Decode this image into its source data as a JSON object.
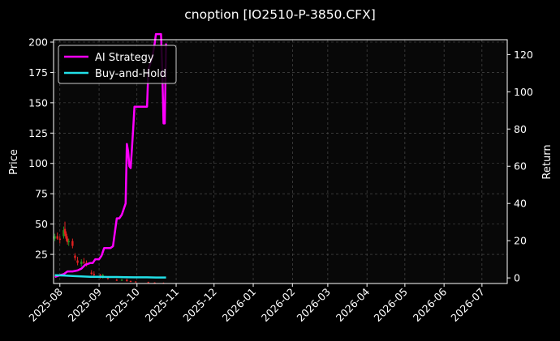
{
  "chart_data": {
    "type": "line",
    "title": "cnoption [IO2510-P-3850.CFX]",
    "xlabel": "",
    "ylabel": "Price",
    "y2label": "Return",
    "grid": true,
    "legend_placement": "top-left",
    "background": "#000000",
    "x_ticks": [
      "2025-08",
      "2025-09",
      "2025-10",
      "2025-11",
      "2025-12",
      "2026-01",
      "2026-02",
      "2026-03",
      "2026-04",
      "2026-05",
      "2026-06",
      "2026-07"
    ],
    "xlim": [
      "2025-07-27",
      "2026-07-21"
    ],
    "ylim": [
      1,
      202
    ],
    "y_ticks": [
      25,
      50,
      75,
      100,
      125,
      150,
      175,
      200
    ],
    "y2lim": [
      -3,
      128
    ],
    "y2_ticks": [
      0,
      20,
      40,
      60,
      80,
      100,
      120
    ],
    "series": [
      {
        "name": "AI Strategy",
        "color": "#ff00ff",
        "axis": "right",
        "x": [
          "2025-07-28",
          "2025-08-01",
          "2025-08-04",
          "2025-08-07",
          "2025-08-11",
          "2025-08-15",
          "2025-08-18",
          "2025-08-21",
          "2025-08-25",
          "2025-08-27",
          "2025-08-29",
          "2025-09-01",
          "2025-09-03",
          "2025-09-05",
          "2025-09-08",
          "2025-09-10",
          "2025-09-12",
          "2025-09-15",
          "2025-09-17",
          "2025-09-19",
          "2025-09-22",
          "2025-09-23",
          "2025-09-24",
          "2025-09-25",
          "2025-09-26",
          "2025-09-28",
          "2025-09-29",
          "2025-09-30",
          "2025-10-09",
          "2025-10-10",
          "2025-10-13",
          "2025-10-14",
          "2025-10-15",
          "2025-10-16",
          "2025-10-20",
          "2025-10-21",
          "2025-10-22",
          "2025-10-23",
          "2025-10-24"
        ],
        "values": [
          0.5,
          1.5,
          2.0,
          3.5,
          3.5,
          4.0,
          5.0,
          7.0,
          8.0,
          8.0,
          10.0,
          10.0,
          12.0,
          16.0,
          16.0,
          16.0,
          17.0,
          32.0,
          32.0,
          34.0,
          40.0,
          72.0,
          68.0,
          60.0,
          59.0,
          80.0,
          92.0,
          92.0,
          92.0,
          112.0,
          118.0,
          122.0,
          126.0,
          131.0,
          131.0,
          112.0,
          83.0,
          83.0,
          126.0
        ]
      },
      {
        "name": "Buy-and-Hold",
        "color": "#22e0e8",
        "axis": "right",
        "x": [
          "2025-07-28",
          "2025-08-04",
          "2025-08-11",
          "2025-08-18",
          "2025-08-25",
          "2025-09-01",
          "2025-09-08",
          "2025-09-15",
          "2025-09-22",
          "2025-09-29",
          "2025-10-09",
          "2025-10-16",
          "2025-10-24"
        ],
        "values": [
          1.5,
          1.3,
          1.0,
          0.8,
          0.6,
          0.6,
          0.5,
          0.5,
          0.4,
          0.3,
          0.3,
          0.2,
          0.2
        ]
      }
    ],
    "candles": {
      "axis": "left",
      "up_color": "#1f8f1f",
      "down_color": "#e02020",
      "items": [
        {
          "x": "2025-07-28",
          "o": 38,
          "h": 42,
          "l": 36,
          "c": 40
        },
        {
          "x": "2025-07-30",
          "o": 40,
          "h": 43,
          "l": 37,
          "c": 38
        },
        {
          "x": "2025-08-01",
          "o": 38,
          "h": 40,
          "l": 34,
          "c": 37
        },
        {
          "x": "2025-08-04",
          "o": 40,
          "h": 48,
          "l": 38,
          "c": 45
        },
        {
          "x": "2025-08-05",
          "o": 46,
          "h": 52,
          "l": 40,
          "c": 42
        },
        {
          "x": "2025-08-06",
          "o": 42,
          "h": 44,
          "l": 36,
          "c": 38
        },
        {
          "x": "2025-08-07",
          "o": 38,
          "h": 40,
          "l": 33,
          "c": 35
        },
        {
          "x": "2025-08-08",
          "o": 35,
          "h": 38,
          "l": 32,
          "c": 36
        },
        {
          "x": "2025-08-11",
          "o": 36,
          "h": 38,
          "l": 30,
          "c": 32
        },
        {
          "x": "2025-08-13",
          "o": 24,
          "h": 26,
          "l": 20,
          "c": 22
        },
        {
          "x": "2025-08-15",
          "o": 20,
          "h": 23,
          "l": 16,
          "c": 18
        },
        {
          "x": "2025-08-18",
          "o": 17,
          "h": 21,
          "l": 15,
          "c": 19
        },
        {
          "x": "2025-08-20",
          "o": 19,
          "h": 22,
          "l": 17,
          "c": 18
        },
        {
          "x": "2025-08-22",
          "o": 18,
          "h": 20,
          "l": 15,
          "c": 16
        },
        {
          "x": "2025-08-26",
          "o": 10,
          "h": 12,
          "l": 8,
          "c": 9
        },
        {
          "x": "2025-08-28",
          "o": 9,
          "h": 11,
          "l": 7,
          "c": 8
        },
        {
          "x": "2025-09-02",
          "o": 8,
          "h": 9,
          "l": 5,
          "c": 6
        },
        {
          "x": "2025-09-04",
          "o": 6,
          "h": 9,
          "l": 5,
          "c": 8
        },
        {
          "x": "2025-09-08",
          "o": 6,
          "h": 7,
          "l": 4,
          "c": 5
        },
        {
          "x": "2025-09-15",
          "o": 4,
          "h": 5,
          "l": 3,
          "c": 3.5
        },
        {
          "x": "2025-09-19",
          "o": 3.5,
          "h": 5,
          "l": 3,
          "c": 4
        },
        {
          "x": "2025-09-23",
          "o": 4,
          "h": 5,
          "l": 2.5,
          "c": 3
        },
        {
          "x": "2025-09-26",
          "o": 3,
          "h": 3.5,
          "l": 2,
          "c": 2.5
        },
        {
          "x": "2025-09-30",
          "o": 2.5,
          "h": 3,
          "l": 2,
          "c": 2.2
        },
        {
          "x": "2025-10-10",
          "o": 2.2,
          "h": 2.5,
          "l": 1.5,
          "c": 1.8
        },
        {
          "x": "2025-10-15",
          "o": 1.8,
          "h": 2,
          "l": 1.2,
          "c": 1.5
        },
        {
          "x": "2025-10-22",
          "o": 1.5,
          "h": 1.8,
          "l": 1.1,
          "c": 1.3
        }
      ]
    }
  }
}
